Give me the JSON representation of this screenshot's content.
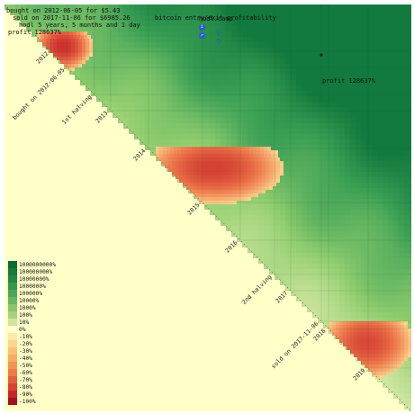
{
  "app": {
    "title": "hodl.camp",
    "subtitle": "bitcoin entry/exit profitability",
    "info_icon": "info-icon",
    "link_icon": "link-icon",
    "zoom_in_icon": "zoom-in-icon",
    "zoom_out_icon": "zoom-out-icon"
  },
  "info": {
    "line1": "bought on 2012-06-05 for $5.43",
    "line2": "sold on 2017-11-06 for $6985.26",
    "line3": "hodl 5 years, 5 months and 1 day",
    "line4": "profit 128637%"
  },
  "tooltip": {
    "text": "profit 128637%"
  },
  "colors": {
    "background_lower": "#ffffc8",
    "strong_gain": "#0a7a3a",
    "gain": "#8fcf6e",
    "loss": "#f29a5a",
    "strong_loss": "#c81e1e",
    "legend_zero": "#ffffc8"
  },
  "chart_data": {
    "type": "heatmap",
    "title": "hodl.camp",
    "subtitle": "bitcoin entry/exit profitability",
    "diagonal_labels": [
      "2012",
      "bought on 2012-06-05",
      "1st halving",
      "2013",
      "2014",
      "2015",
      "2016",
      "2nd halving",
      "2017",
      "sold on 2017-11-06",
      "2018",
      "2019"
    ],
    "legend": [
      {
        "label": "1000000000%",
        "color": "#0b6b34"
      },
      {
        "label": "100000000%",
        "color": "#177a3c"
      },
      {
        "label": "10000000%",
        "color": "#238845"
      },
      {
        "label": "1000000%",
        "color": "#36974f"
      },
      {
        "label": "100000%",
        "color": "#4ea65a"
      },
      {
        "label": "10000%",
        "color": "#6ab565"
      },
      {
        "label": "1000%",
        "color": "#88c470"
      },
      {
        "label": "100%",
        "color": "#a8d27e"
      },
      {
        "label": "10%",
        "color": "#cfe6a0"
      },
      {
        "label": "0%",
        "color": "#ffffc8"
      },
      {
        "label": "-10%",
        "color": "#fde8a8"
      },
      {
        "label": "-20%",
        "color": "#fcd58e"
      },
      {
        "label": "-30%",
        "color": "#fbc17a"
      },
      {
        "label": "-40%",
        "color": "#f8ab67"
      },
      {
        "label": "-50%",
        "color": "#f49358"
      },
      {
        "label": "-60%",
        "color": "#ee7a4b"
      },
      {
        "label": "-70%",
        "color": "#e55f3f"
      },
      {
        "label": "-80%",
        "color": "#d94334"
      },
      {
        "label": "-90%",
        "color": "#c8272a"
      },
      {
        "label": "-100%",
        "color": "#a50f20"
      }
    ],
    "loss_regions": [
      {
        "buy": "2011-06",
        "sell_to": "2011-12",
        "min_pct": -95
      },
      {
        "buy": "2013-11",
        "sell_to": "2015-08",
        "min_pct": -85
      },
      {
        "buy": "2017-12",
        "sell_to": "2019-06",
        "min_pct": -80
      }
    ]
  }
}
